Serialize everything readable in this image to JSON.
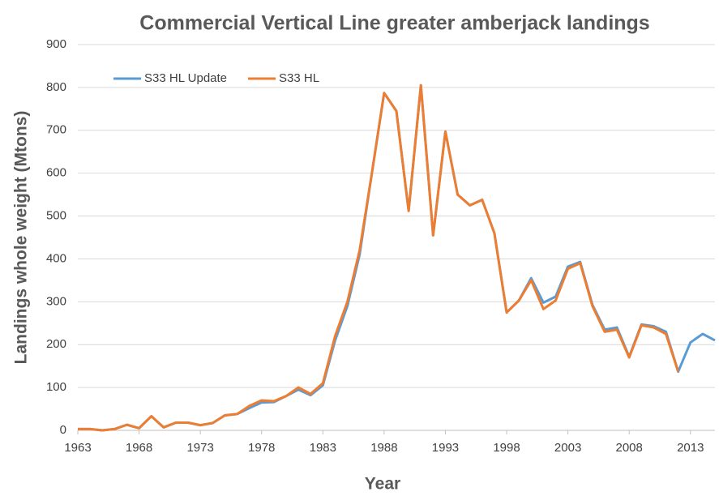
{
  "chart_data": {
    "type": "line",
    "title": "Commercial Vertical Line greater amberjack landings",
    "xlabel": "Year",
    "ylabel": "Landings whole weight (Mtons)",
    "x": [
      1963,
      1964,
      1965,
      1966,
      1967,
      1968,
      1969,
      1970,
      1971,
      1972,
      1973,
      1974,
      1975,
      1976,
      1977,
      1978,
      1979,
      1980,
      1981,
      1982,
      1983,
      1984,
      1985,
      1986,
      1987,
      1988,
      1989,
      1990,
      1991,
      1992,
      1993,
      1994,
      1995,
      1996,
      1997,
      1998,
      1999,
      2000,
      2001,
      2002,
      2003,
      2004,
      2005,
      2006,
      2007,
      2008,
      2009,
      2010,
      2011,
      2012,
      2013,
      2014,
      2015
    ],
    "series": [
      {
        "name": "S33 HL Update",
        "color": "#5b9bd5",
        "values": [
          3,
          3,
          0,
          3,
          13,
          5,
          33,
          7,
          18,
          18,
          12,
          17,
          35,
          38,
          52,
          65,
          66,
          80,
          95,
          82,
          105,
          210,
          290,
          410,
          600,
          787,
          745,
          512,
          805,
          455,
          697,
          550,
          525,
          538,
          460,
          275,
          303,
          355,
          298,
          312,
          382,
          393,
          293,
          235,
          240,
          172,
          247,
          243,
          230,
          137,
          205,
          225,
          210
        ]
      },
      {
        "name": "S33 HL",
        "color": "#ed7d31",
        "values": [
          3,
          3,
          0,
          3,
          13,
          5,
          33,
          7,
          18,
          18,
          12,
          17,
          35,
          38,
          57,
          70,
          68,
          80,
          100,
          85,
          110,
          220,
          300,
          420,
          600,
          787,
          745,
          512,
          805,
          455,
          697,
          550,
          525,
          538,
          460,
          275,
          303,
          350,
          283,
          303,
          377,
          390,
          290,
          230,
          235,
          170,
          245,
          240,
          225,
          137,
          null,
          null,
          null
        ]
      }
    ],
    "xlim": [
      1963,
      2015
    ],
    "xticks": [
      1963,
      1968,
      1973,
      1978,
      1983,
      1988,
      1993,
      1998,
      2003,
      2008,
      2013
    ],
    "ylim": [
      0,
      900
    ],
    "yticks": [
      0,
      100,
      200,
      300,
      400,
      500,
      600,
      700,
      800,
      900
    ],
    "grid": true,
    "legend": "top-left"
  }
}
